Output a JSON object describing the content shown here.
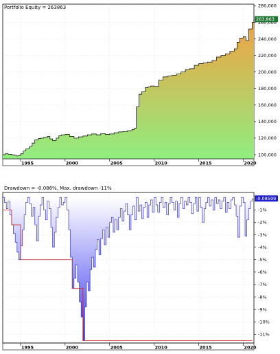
{
  "chart_data": [
    {
      "type": "area",
      "title": "Portfolio Equity = 263863",
      "last_value_label": "263,863",
      "series_color": "#000000",
      "fill_top_color": "#f2a040",
      "fill_bottom_color": "#90ee80",
      "badge_color": "#1e7a30",
      "ylim": [
        95000,
        282000
      ],
      "yticks": [
        100000,
        120000,
        140000,
        160000,
        180000,
        200000,
        220000,
        240000,
        260000,
        280000
      ],
      "ytick_labels": [
        "100,000",
        "120,000",
        "140,000",
        "160,000",
        "180,000",
        "200,000",
        "220,000",
        "240,000",
        "260,000",
        "280,000"
      ],
      "xlim": [
        1993.0,
        2021.2
      ],
      "xticks": [
        1995,
        2000,
        2005,
        2010,
        2015,
        2020
      ],
      "xtick_labels": [
        "1995",
        "2000",
        "2005",
        "2010",
        "2015",
        "2020"
      ],
      "grid": true,
      "x": [
        1993.0,
        1993.3,
        1993.6,
        1994.0,
        1994.3,
        1994.5,
        1994.8,
        1995.0,
        1995.3,
        1995.6,
        1996.0,
        1996.3,
        1996.6,
        1997.0,
        1997.3,
        1997.6,
        1998.0,
        1998.3,
        1998.6,
        1999.0,
        1999.3,
        1999.6,
        2000.0,
        2000.5,
        2001.0,
        2001.5,
        2002.0,
        2002.5,
        2003.0,
        2003.5,
        2004.0,
        2004.5,
        2005.0,
        2005.5,
        2006.0,
        2006.5,
        2007.0,
        2007.5,
        2007.8,
        2008.0,
        2008.3,
        2008.6,
        2009.0,
        2009.3,
        2009.6,
        2010.0,
        2010.5,
        2011.0,
        2011.5,
        2012.0,
        2012.5,
        2013.0,
        2013.5,
        2014.0,
        2014.5,
        2015.0,
        2015.5,
        2016.0,
        2016.5,
        2017.0,
        2017.5,
        2018.0,
        2018.5,
        2019.0,
        2019.3,
        2019.6,
        2020.0,
        2020.3,
        2020.6,
        2021.0,
        2021.2
      ],
      "y": [
        100000,
        101500,
        100500,
        99800,
        99200,
        98500,
        99000,
        101000,
        104500,
        107000,
        110000,
        114000,
        118000,
        119500,
        120000,
        121000,
        122000,
        119000,
        117000,
        120000,
        123000,
        124000,
        124500,
        122000,
        120000,
        121500,
        122500,
        124000,
        125000,
        124000,
        125500,
        124500,
        125000,
        126500,
        127500,
        128000,
        129000,
        130500,
        132000,
        158000,
        173000,
        176000,
        181000,
        182000,
        183000,
        182500,
        190000,
        194000,
        195000,
        196000,
        197500,
        200000,
        203000,
        204000,
        208000,
        210000,
        211000,
        212000,
        214000,
        218000,
        220000,
        222000,
        225000,
        228000,
        236000,
        241000,
        242500,
        238000,
        252000,
        260000,
        263863
      ]
    },
    {
      "type": "area",
      "title": "Drawdown = -0.086%, Max. drawdown -11%",
      "last_value_label": "-0.08599",
      "series_color": "#3030e0",
      "fill_top_color": "#ffffff",
      "fill_bottom_color": "#3838f0",
      "maxdd_line_color": "#cc2020",
      "badge_color": "#2020d0",
      "ylim": [
        -11.7,
        0.4
      ],
      "yticks": [
        -1,
        -2,
        -3,
        -4,
        -5,
        -6,
        -7,
        -8,
        -9,
        -10,
        -11
      ],
      "ytick_labels": [
        "-1%",
        "-2%",
        "-3%",
        "-4%",
        "-5%",
        "-6%",
        "-7%",
        "-8%",
        "-9%",
        "-10%",
        "-11%"
      ],
      "xlim": [
        1993.0,
        2021.2
      ],
      "xticks": [
        1995,
        2000,
        2005,
        2010,
        2015,
        2020
      ],
      "xtick_labels": [
        "1995",
        "2000",
        "2005",
        "2010",
        "2015",
        "2020"
      ],
      "grid": true,
      "max_drawdown_steps": [
        {
          "from": 1993.0,
          "to": 1994.0,
          "value": -1.0
        },
        {
          "from": 1994.0,
          "to": 1995.0,
          "value": -2.2
        },
        {
          "from": 1995.0,
          "to": 2000.8,
          "value": -5.0
        },
        {
          "from": 2000.8,
          "to": 2002.0,
          "value": -7.3
        },
        {
          "from": 2002.0,
          "to": 2021.0,
          "value": -11.5
        }
      ],
      "x": [
        1993.0,
        1993.2,
        1993.4,
        1993.6,
        1993.8,
        1994.0,
        1994.2,
        1994.4,
        1994.6,
        1994.8,
        1995.0,
        1995.2,
        1995.4,
        1995.6,
        1995.8,
        1996.0,
        1996.2,
        1996.4,
        1996.6,
        1996.8,
        1997.0,
        1997.2,
        1997.4,
        1997.6,
        1997.8,
        1998.0,
        1998.2,
        1998.4,
        1998.6,
        1998.8,
        1999.0,
        1999.2,
        1999.4,
        1999.6,
        1999.8,
        2000.0,
        2000.2,
        2000.4,
        2000.6,
        2000.8,
        2001.0,
        2001.2,
        2001.4,
        2001.6,
        2001.8,
        2002.0,
        2002.2,
        2002.4,
        2002.6,
        2002.8,
        2003.0,
        2003.2,
        2003.4,
        2003.6,
        2003.8,
        2004.0,
        2004.2,
        2004.4,
        2004.6,
        2004.8,
        2005.0,
        2005.2,
        2005.4,
        2005.6,
        2005.8,
        2006.0,
        2006.2,
        2006.4,
        2006.6,
        2006.8,
        2007.0,
        2007.2,
        2007.4,
        2007.6,
        2007.8,
        2008.0,
        2008.2,
        2008.4,
        2008.6,
        2008.8,
        2009.0,
        2009.2,
        2009.4,
        2009.6,
        2009.8,
        2010.0,
        2010.2,
        2010.4,
        2010.6,
        2010.8,
        2011.0,
        2011.2,
        2011.4,
        2011.6,
        2011.8,
        2012.0,
        2012.2,
        2012.4,
        2012.6,
        2012.8,
        2013.0,
        2013.2,
        2013.4,
        2013.6,
        2013.8,
        2014.0,
        2014.2,
        2014.4,
        2014.6,
        2014.8,
        2015.0,
        2015.2,
        2015.4,
        2015.6,
        2015.8,
        2016.0,
        2016.2,
        2016.4,
        2016.6,
        2016.8,
        2017.0,
        2017.2,
        2017.4,
        2017.6,
        2017.8,
        2018.0,
        2018.2,
        2018.4,
        2018.6,
        2018.8,
        2019.0,
        2019.2,
        2019.4,
        2019.6,
        2019.8,
        2020.0,
        2020.2,
        2020.4,
        2020.6,
        2020.8,
        2021.0,
        2021.2
      ],
      "y": [
        0,
        -0.4,
        -0.9,
        -0.3,
        -1.4,
        -2.2,
        -2.9,
        -3.6,
        -4.4,
        -5.0,
        -3.9,
        -2.6,
        -1.4,
        -0.4,
        0,
        -0.5,
        -1.5,
        -0.8,
        -2.2,
        -3.5,
        -1.5,
        -0.6,
        0,
        -1.0,
        -1.8,
        -0.3,
        -0.9,
        -2.4,
        -4.0,
        -2.8,
        -1.6,
        -0.8,
        0,
        -0.6,
        -0.4,
        0,
        -1.0,
        -2.6,
        -4.8,
        -7.3,
        -6.5,
        -5.4,
        -6.8,
        -8.4,
        -9.6,
        -11.5,
        -8.8,
        -6.8,
        -7.5,
        -5.8,
        -4.8,
        -5.6,
        -4.2,
        -3.4,
        -4.6,
        -3.3,
        -2.6,
        -3.8,
        -2.4,
        -3.2,
        -2.0,
        -1.6,
        -2.8,
        -1.8,
        -2.6,
        -1.6,
        -0.9,
        -1.9,
        -1.1,
        -0.5,
        -1.4,
        -2.6,
        -1.4,
        -0.7,
        -1.8,
        0,
        -1.1,
        -0.6,
        -1.7,
        -0.8,
        -0.4,
        -1.6,
        -0.6,
        -0.2,
        -1.2,
        0,
        -0.6,
        -1.2,
        -0.4,
        0,
        -0.8,
        -0.4,
        -1.4,
        -0.5,
        0,
        -0.4,
        -1.0,
        -0.3,
        -1.6,
        -0.5,
        0,
        -0.9,
        -0.3,
        -0.6,
        0,
        -0.4,
        -1.3,
        -0.5,
        0,
        -1.1,
        0,
        -0.8,
        -2.0,
        -0.9,
        -0.4,
        0,
        -0.7,
        -0.2,
        -1.0,
        0,
        -0.5,
        -0.2,
        -0.9,
        -0.3,
        0,
        -1.2,
        -0.4,
        -0.9,
        -0.2,
        0,
        -0.6,
        -1.5,
        -3.2,
        -0.7,
        0,
        -0.4,
        -3.1,
        -1.8,
        -0.9,
        -0.3,
        -0.1,
        -0.086
      ]
    }
  ]
}
